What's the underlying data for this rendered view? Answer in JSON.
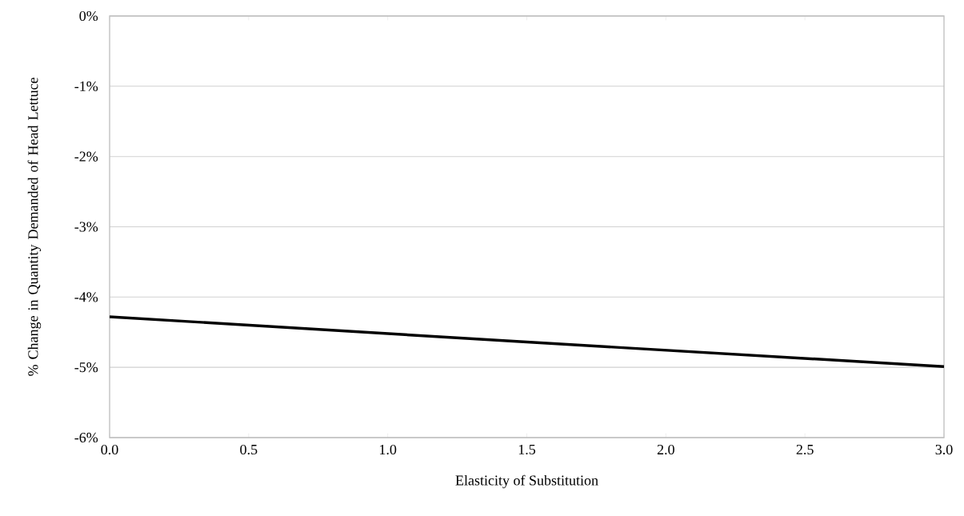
{
  "chart_data": {
    "type": "line",
    "xlabel": "Elasticity of Substitution",
    "ylabel": "% Change in Quantity Demanded of Head Lettuce",
    "x": [
      0,
      1.5,
      3
    ],
    "series": [
      {
        "color": "#000000",
        "values": [
          -4.28,
          -4.64,
          -4.99
        ]
      }
    ],
    "xlim": [
      0,
      3
    ],
    "ylim": [
      -6,
      0
    ],
    "xticks": [
      {
        "value": 0,
        "label": "0.0"
      },
      {
        "value": 0.5,
        "label": "0.5"
      },
      {
        "value": 1,
        "label": "1.0"
      },
      {
        "value": 1.5,
        "label": "1.5"
      },
      {
        "value": 2,
        "label": "2.0"
      },
      {
        "value": 2.5,
        "label": "2.5"
      },
      {
        "value": 3,
        "label": "3.0"
      }
    ],
    "yticks": [
      {
        "value": -6,
        "label": "-6%"
      },
      {
        "value": -5,
        "label": "-5%"
      },
      {
        "value": -4,
        "label": "-4%"
      },
      {
        "value": -3,
        "label": "-3%"
      },
      {
        "value": -2,
        "label": "-2%"
      },
      {
        "value": -1,
        "label": "-1%"
      },
      {
        "value": 0,
        "label": "0%"
      }
    ],
    "grid": "y",
    "marker": "none",
    "line_style": "solid"
  }
}
